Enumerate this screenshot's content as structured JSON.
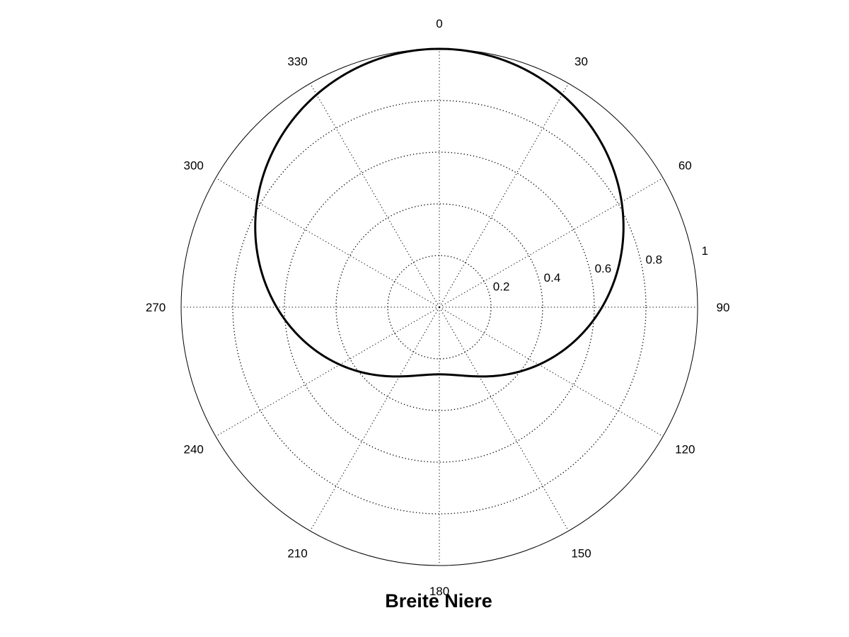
{
  "chart_data": {
    "type": "polar-line",
    "title": "Breite Niere",
    "angle_zero": "top",
    "angle_direction": "clockwise",
    "angle_ticks": [
      0,
      30,
      60,
      90,
      120,
      150,
      180,
      210,
      240,
      270,
      300,
      330
    ],
    "angle_tick_labels": [
      "0",
      "30",
      "60",
      "90",
      "120",
      "150",
      "180",
      "210",
      "240",
      "270",
      "300",
      "330"
    ],
    "radial_range": [
      0,
      1
    ],
    "radial_ticks": [
      0.2,
      0.4,
      0.6,
      0.8,
      1
    ],
    "radial_tick_labels": [
      "0.2",
      "0.4",
      "0.6",
      "0.8",
      "1"
    ],
    "grid": true,
    "grid_style": "dotted",
    "series": [
      {
        "formula": "r = 0.63 + 0.37 * cos(theta)",
        "theta_deg": [
          0,
          15,
          30,
          45,
          60,
          75,
          90,
          105,
          120,
          135,
          150,
          165,
          180,
          195,
          210,
          225,
          240,
          255,
          270,
          285,
          300,
          315,
          330,
          345,
          360
        ],
        "r": [
          1.0,
          0.987,
          0.95,
          0.892,
          0.815,
          0.726,
          0.63,
          0.534,
          0.445,
          0.368,
          0.31,
          0.273,
          0.26,
          0.273,
          0.31,
          0.368,
          0.445,
          0.534,
          0.63,
          0.726,
          0.815,
          0.892,
          0.95,
          0.987,
          1.0
        ],
        "color": "#000000"
      }
    ]
  }
}
